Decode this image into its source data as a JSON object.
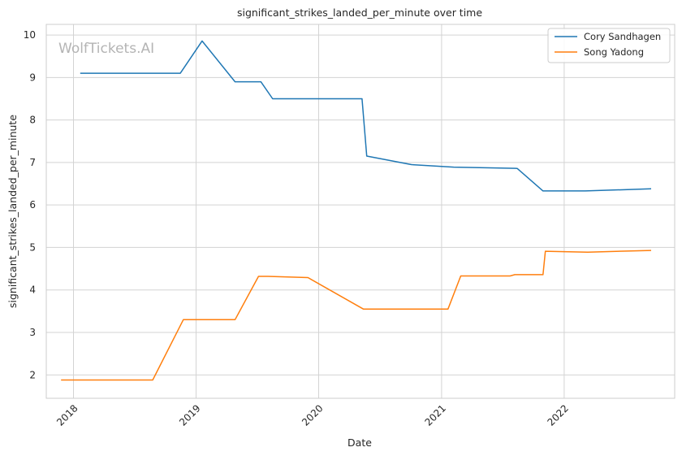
{
  "chart_data": {
    "type": "line",
    "title": "significant_strikes_landed_per_minute over time",
    "xlabel": "Date",
    "ylabel": "significant_strikes_landed_per_minute",
    "x_axis": "date",
    "xlim": [
      "2017-10-12",
      "2022-11-26"
    ],
    "ylim": [
      1.45,
      10.25
    ],
    "x_ticks": [
      "2018-01-01",
      "2019-01-01",
      "2020-01-01",
      "2021-01-01",
      "2022-01-01"
    ],
    "x_tick_labels": [
      "2018",
      "2019",
      "2020",
      "2021",
      "2022"
    ],
    "y_ticks": [
      2,
      3,
      4,
      5,
      6,
      7,
      8,
      9,
      10
    ],
    "y_tick_labels": [
      "2",
      "3",
      "4",
      "5",
      "6",
      "7",
      "8",
      "9",
      "10"
    ],
    "grid": true,
    "legend_position": "top-right",
    "watermark": "WolfTickets.AI",
    "series": [
      {
        "name": "Cory Sandhagen",
        "color": "#1f77b4",
        "points": [
          {
            "x": "2018-01-21",
            "y": 9.1
          },
          {
            "x": "2018-11-15",
            "y": 9.1
          },
          {
            "x": "2019-01-19",
            "y": 9.86
          },
          {
            "x": "2019-04-27",
            "y": 8.9
          },
          {
            "x": "2019-07-13",
            "y": 8.9
          },
          {
            "x": "2019-08-17",
            "y": 8.5
          },
          {
            "x": "2020-05-09",
            "y": 8.5
          },
          {
            "x": "2020-05-23",
            "y": 7.15
          },
          {
            "x": "2020-10-03",
            "y": 6.95
          },
          {
            "x": "2021-02-06",
            "y": 6.89
          },
          {
            "x": "2021-08-14",
            "y": 6.86
          },
          {
            "x": "2021-10-30",
            "y": 6.33
          },
          {
            "x": "2022-03-05",
            "y": 6.33
          },
          {
            "x": "2022-09-17",
            "y": 6.38
          }
        ]
      },
      {
        "name": "Song Yadong",
        "color": "#ff7f0e",
        "points": [
          {
            "x": "2017-11-25",
            "y": 1.88
          },
          {
            "x": "2018-08-25",
            "y": 1.88
          },
          {
            "x": "2018-11-24",
            "y": 3.3
          },
          {
            "x": "2019-04-27",
            "y": 3.3
          },
          {
            "x": "2019-07-06",
            "y": 4.32
          },
          {
            "x": "2019-08-03",
            "y": 4.32
          },
          {
            "x": "2019-11-30",
            "y": 4.29
          },
          {
            "x": "2020-05-13",
            "y": 3.55
          },
          {
            "x": "2021-01-20",
            "y": 3.55
          },
          {
            "x": "2021-02-27",
            "y": 4.33
          },
          {
            "x": "2021-07-24",
            "y": 4.33
          },
          {
            "x": "2021-08-07",
            "y": 4.36
          },
          {
            "x": "2021-10-30",
            "y": 4.36
          },
          {
            "x": "2021-11-06",
            "y": 4.91
          },
          {
            "x": "2022-03-12",
            "y": 4.89
          },
          {
            "x": "2022-09-17",
            "y": 4.93
          }
        ]
      }
    ]
  }
}
